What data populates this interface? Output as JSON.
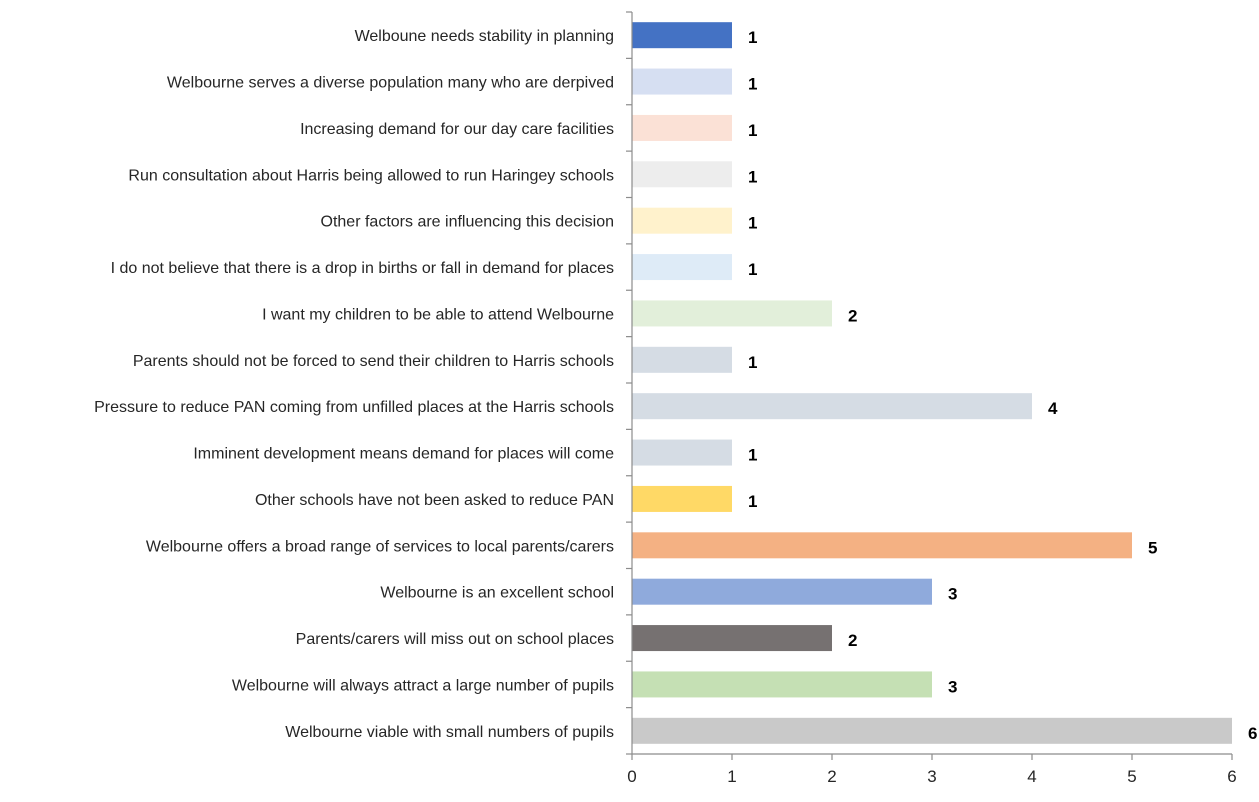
{
  "chart_data": {
    "type": "bar",
    "orientation": "horizontal",
    "title": "",
    "xlabel": "",
    "ylabel": "",
    "xlim": [
      0,
      6
    ],
    "x_ticks": [
      "0",
      "1",
      "2",
      "3",
      "4",
      "5",
      "6"
    ],
    "grid": false,
    "legend": "none",
    "categories": [
      "Welboune needs stability in planning",
      "Welbourne serves a diverse population many who are derpived",
      "Increasing demand for our day care facilities",
      "Run consultation about Harris being allowed to run Haringey schools",
      "Other factors are influencing this decision",
      "I do not believe that there is a drop in births or fall in demand for places",
      "I want my children to be able to attend Welbourne",
      "Parents should not be forced to send their children to Harris schools",
      "Pressure to reduce PAN coming from unfilled places at the Harris schools",
      "Imminent development means demand for places will come",
      "Other schools have not been asked to reduce PAN",
      "Welbourne offers a broad range of services to local parents/carers",
      "Welbourne is an excellent school",
      "Parents/carers will miss out on school places",
      "Welbourne will always attract a large number of pupils",
      "Welbourne viable with small numbers of pupils"
    ],
    "values": [
      1,
      1,
      1,
      1,
      1,
      1,
      2,
      1,
      4,
      1,
      1,
      5,
      3,
      2,
      3,
      6
    ],
    "bar_colors": [
      "#4472C4",
      "#D6DFF2",
      "#FBE1D6",
      "#EDEDED",
      "#FFF2CC",
      "#DEEBF7",
      "#E2EFDA",
      "#D5DCE4",
      "#D5DCE4",
      "#D5DCE4",
      "#FFD966",
      "#F4B183",
      "#8FAADC",
      "#767171",
      "#C5E0B4",
      "#C9C9C9"
    ]
  }
}
